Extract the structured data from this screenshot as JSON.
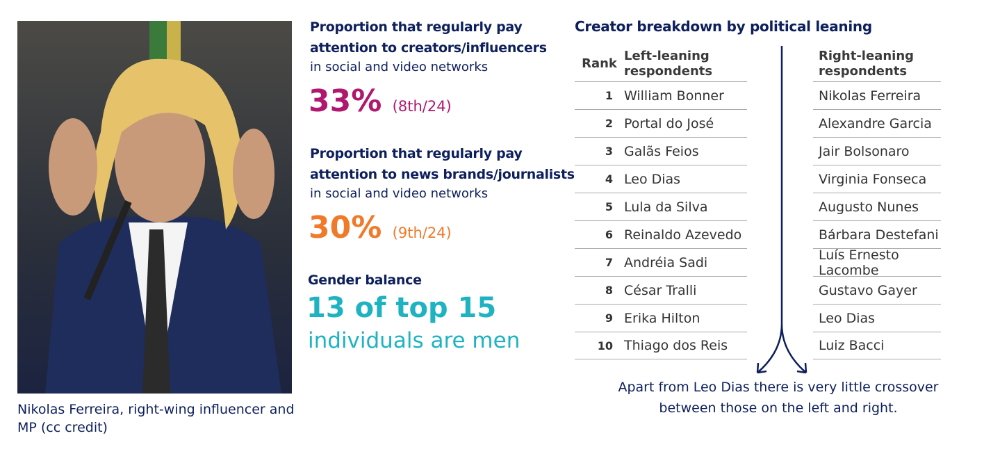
{
  "photo": {
    "caption": "Nikolas Ferreira, right-wing influencer and MP (cc credit)"
  },
  "stats": {
    "creators": {
      "title_line1": "Proportion that regularly pay",
      "title_line2": "attention to creators/influencers",
      "subtitle": "in social and video networks",
      "value": "33%",
      "rank": "(8th/24)"
    },
    "news": {
      "title_line1": "Proportion that regularly pay",
      "title_line2": "attention to news brands/journalists",
      "subtitle": "in social and video networks",
      "value": "30%",
      "rank": "(9th/24)"
    },
    "gender": {
      "title": "Gender balance",
      "value": "13 of top 15",
      "subtitle": "individuals are men"
    }
  },
  "table": {
    "title": "Creator breakdown by political leaning",
    "rank_header": "Rank",
    "left_header": "Left-leaning respondents",
    "right_header": "Right-leaning respondents",
    "ranks": [
      "1",
      "2",
      "3",
      "4",
      "5",
      "6",
      "7",
      "8",
      "9",
      "10"
    ],
    "left": [
      "William Bonner",
      "Portal do José",
      "Galãs Feios",
      "Leo Dias",
      "Lula da Silva",
      "Reinaldo Azevedo",
      "Andréia Sadi",
      "César Tralli",
      "Erika Hilton",
      "Thiago dos Reis"
    ],
    "right": [
      "Nikolas Ferreira",
      "Alexandre Garcia",
      "Jair Bolsonaro",
      "Virginia Fonseca",
      "Augusto Nunes",
      "Bárbara Destefani",
      "Luís Ernesto Lacombe",
      "Gustavo Gayer",
      "Leo Dias",
      "Luiz Bacci"
    ],
    "note": "Apart from Leo Dias  there is very little crossover between those on the left and right."
  },
  "colors": {
    "navy": "#0d1f5c",
    "magenta": "#b0176f",
    "orange": "#f07a2a",
    "teal": "#1fb3c2"
  }
}
